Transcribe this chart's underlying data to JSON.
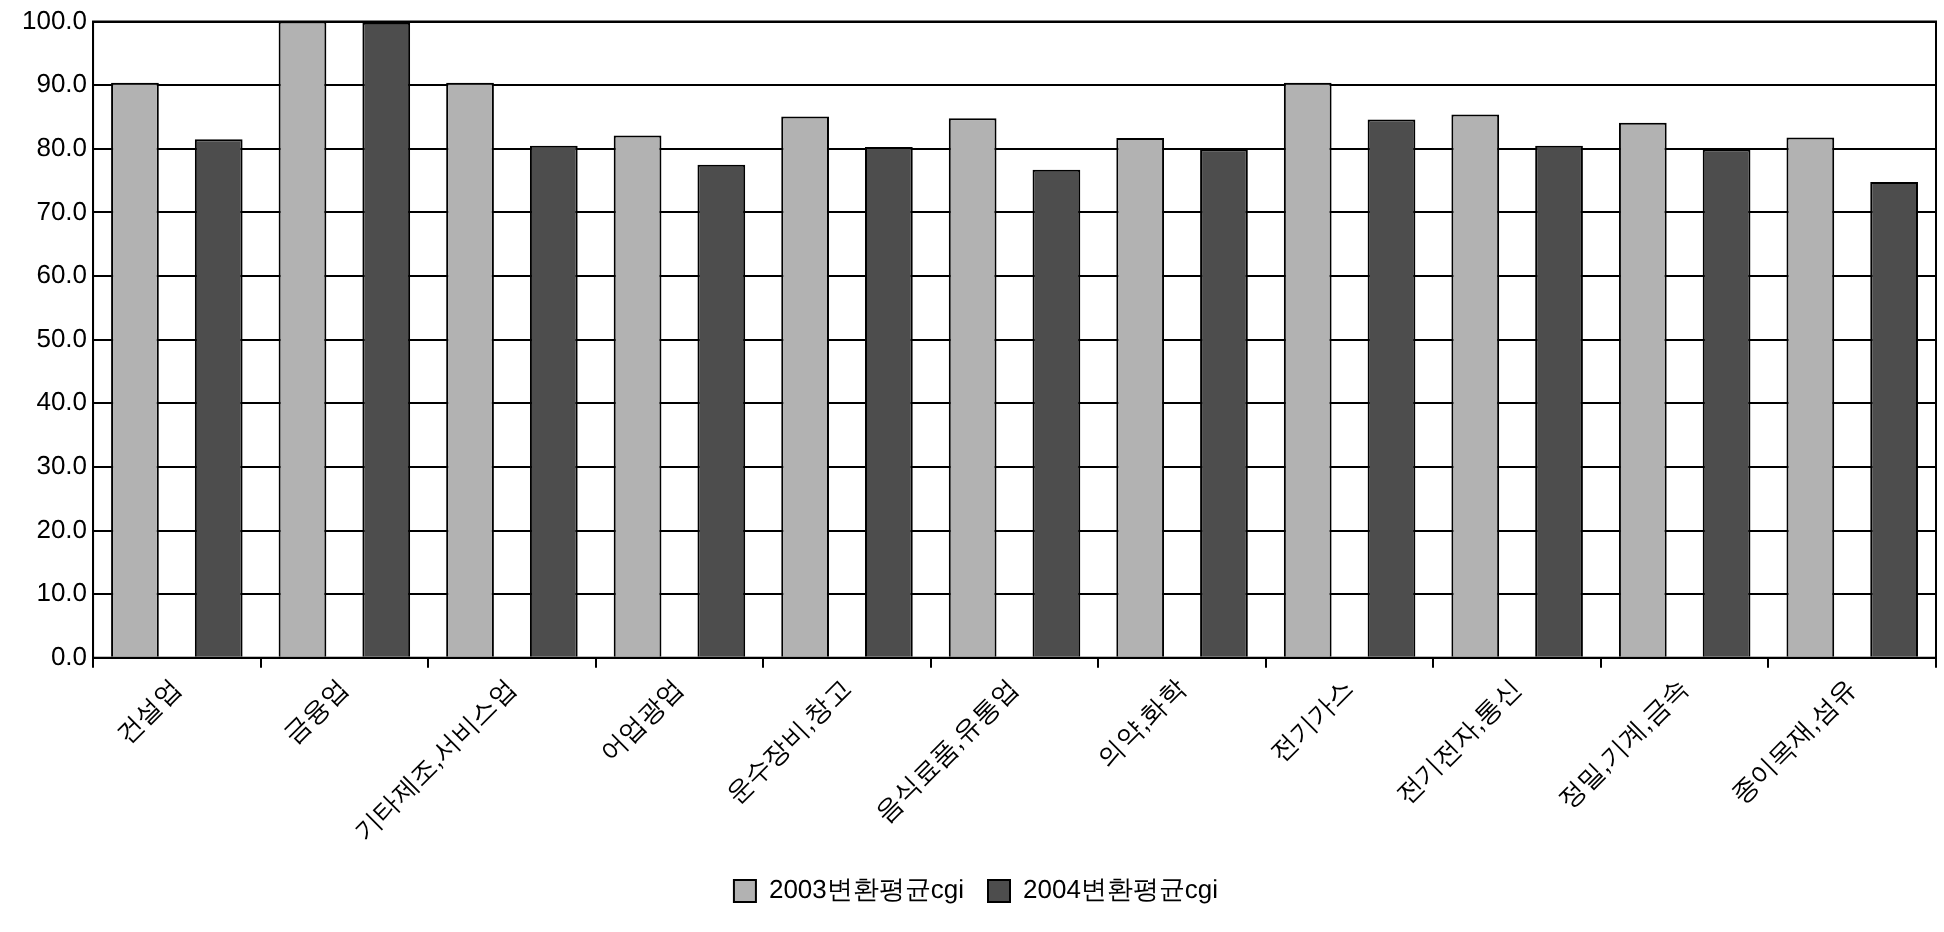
{
  "chart_data": {
    "type": "bar",
    "categories": [
      "건설업",
      "금융업",
      "기타제조,서비스업",
      "어업광업",
      "운수장비,창고",
      "음식료품,유통업",
      "의약,화학",
      "전기가스",
      "전기전자,통신",
      "정밀,기계,금속",
      "종이목재,섬유"
    ],
    "series": [
      {
        "name": "2003변환평균cgi",
        "color": "#b2b2b2",
        "values": [
          90.4,
          100,
          90.4,
          82.1,
          85.1,
          84.8,
          81.7,
          90.4,
          85.4,
          84.1,
          81.8
        ]
      },
      {
        "name": "2004변환평균cgi",
        "color": "#4d4d4d",
        "values": [
          81.5,
          99.8,
          80.5,
          77.5,
          80.3,
          76.7,
          79.9,
          84.6,
          80.5,
          79.9,
          74.8
        ]
      }
    ],
    "ylim": [
      0,
      100
    ],
    "yticks": [
      {
        "value": 0,
        "label": "0.0"
      },
      {
        "value": 10,
        "label": "10.0"
      },
      {
        "value": 20,
        "label": "20.0"
      },
      {
        "value": 30,
        "label": "30.0"
      },
      {
        "value": 40,
        "label": "40.0"
      },
      {
        "value": 50,
        "label": "50.0"
      },
      {
        "value": 60,
        "label": "60.0"
      },
      {
        "value": 70,
        "label": "70.0"
      },
      {
        "value": 80,
        "label": "80.0"
      },
      {
        "value": 90,
        "label": "90.0"
      },
      {
        "value": 100,
        "label": "100.0"
      }
    ],
    "grid": "y",
    "legend": "bottom"
  }
}
